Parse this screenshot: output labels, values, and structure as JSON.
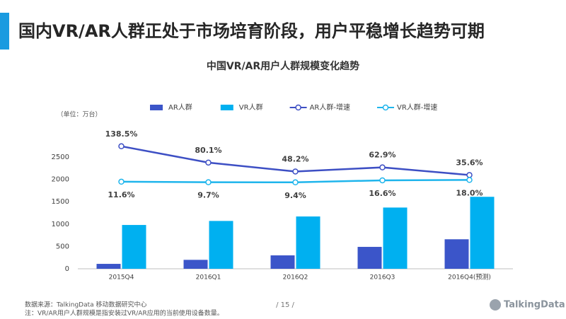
{
  "header": {
    "title": "国内VR/AR人群正处于市场培育阶段，用户平稳增长趋势可期"
  },
  "chart_data": {
    "type": "bar-line",
    "title": "中国VR/AR用户人群规模变化趋势",
    "unit_label": "（单位：万台）",
    "categories": [
      "2015Q4",
      "2016Q1",
      "2016Q2",
      "2016Q3",
      "2016Q4(预测)"
    ],
    "series": [
      {
        "name": "AR人群",
        "type": "bar",
        "color": "#3b55c9",
        "values": [
          110,
          200,
          300,
          490,
          660
        ]
      },
      {
        "name": "VR人群",
        "type": "bar",
        "color": "#00b0f0",
        "values": [
          980,
          1070,
          1170,
          1370,
          1610
        ]
      },
      {
        "name": "AR人群-增速",
        "type": "line",
        "axis": "y2",
        "color": "#3d4fc4",
        "values": [
          138.5,
          80.1,
          48.2,
          62.9,
          35.6
        ],
        "value_labels": [
          "138.5%",
          "80.1%",
          "48.2%",
          "62.9%",
          "35.6%"
        ]
      },
      {
        "name": "VR人群-增速",
        "type": "line",
        "axis": "y2",
        "color": "#1fb5ec",
        "values": [
          11.6,
          9.7,
          9.4,
          16.6,
          18.0
        ],
        "value_labels": [
          "11.6%",
          "9.7%",
          "9.4%",
          "16.6%",
          "18.0%"
        ]
      }
    ],
    "ylim": [
      0,
      2500
    ],
    "yticks": [
      0,
      500,
      1000,
      1500,
      2000,
      2500
    ],
    "y2lim": [
      -300,
      100
    ],
    "grid": false
  },
  "footer": {
    "source": "数据来源：TalkingData 移动数据研究中心",
    "note": "注：VR/AR用户人群规模是指安装过VR/AR应用的当前使用设备数量。",
    "page": "/ 15 /",
    "logo": "TalkingData"
  }
}
